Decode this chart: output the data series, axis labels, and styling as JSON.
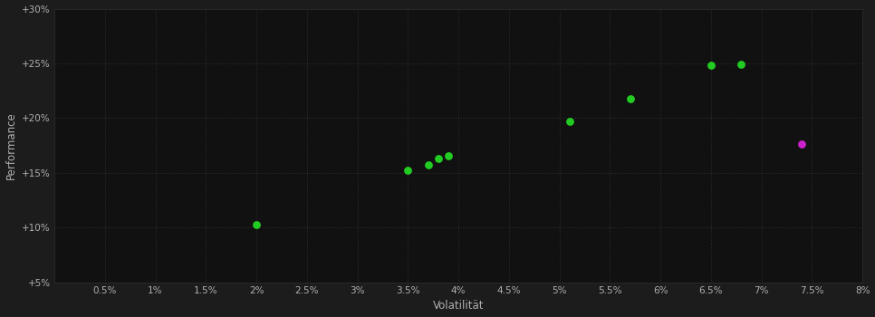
{
  "background_color": "#1c1c1c",
  "plot_bg_color": "#111111",
  "grid_color": "#2e2e2e",
  "text_color": "#b0b0b0",
  "xlabel": "Volatilität",
  "ylabel": "Performance",
  "xlim": [
    0.0,
    0.08
  ],
  "ylim": [
    0.05,
    0.3
  ],
  "xticks": [
    0.005,
    0.01,
    0.015,
    0.02,
    0.025,
    0.03,
    0.035,
    0.04,
    0.045,
    0.05,
    0.055,
    0.06,
    0.065,
    0.07,
    0.075,
    0.08
  ],
  "yticks": [
    0.05,
    0.1,
    0.15,
    0.2,
    0.25,
    0.3
  ],
  "green_points": [
    [
      0.02,
      0.103
    ],
    [
      0.035,
      0.152
    ],
    [
      0.037,
      0.157
    ],
    [
      0.038,
      0.163
    ],
    [
      0.039,
      0.166
    ],
    [
      0.051,
      0.197
    ],
    [
      0.057,
      0.218
    ],
    [
      0.065,
      0.248
    ],
    [
      0.068,
      0.249
    ]
  ],
  "magenta_points": [
    [
      0.074,
      0.176
    ]
  ],
  "green_color": "#22cc22",
  "magenta_color": "#cc22cc",
  "marker_size": 40
}
